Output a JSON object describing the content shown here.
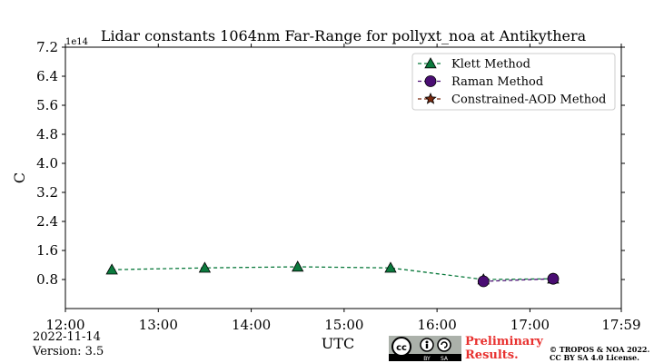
{
  "chart_data": {
    "type": "line",
    "title": "Lidar constants 1064nm Far-Range for pollyxt_noa at Antikythera",
    "xlabel": "UTC",
    "ylabel": "C",
    "y_offset_text": "1e14",
    "xlim": [
      "12:00",
      "17:59"
    ],
    "ylim": [
      0.0,
      7.2
    ],
    "x_ticks": [
      "12:00",
      "13:00",
      "14:00",
      "15:00",
      "16:00",
      "17:00",
      "17:59"
    ],
    "y_ticks": [
      "0.8",
      "1.6",
      "2.4",
      "3.2",
      "4.0",
      "4.8",
      "5.6",
      "6.4",
      "7.2"
    ],
    "grid": false,
    "legend_position": "top-right",
    "series": [
      {
        "name": "Klett Method",
        "color": "#0b7a3d",
        "marker": "triangle",
        "x": [
          "12:30",
          "13:30",
          "14:30",
          "15:30",
          "16:30",
          "17:15"
        ],
        "y": [
          1.07,
          1.12,
          1.15,
          1.12,
          0.8,
          0.82
        ]
      },
      {
        "name": "Raman Method",
        "color": "#4a0d73",
        "marker": "circle",
        "x": [
          "16:30",
          "17:15"
        ],
        "y": [
          0.75,
          0.82
        ]
      },
      {
        "name": "Constrained-AOD Method",
        "color": "#7a2a10",
        "marker": "star",
        "x": [],
        "y": []
      }
    ]
  },
  "footer": {
    "date": "2022-11-14",
    "version": "Version: 3.5",
    "preliminary_line1": "Preliminary",
    "preliminary_line2": "Results.",
    "copyright_line1": "© TROPOS & NOA 2022.",
    "copyright_line2": "CC BY SA 4.0 License.",
    "badge_by": "BY",
    "badge_sa": "SA"
  }
}
